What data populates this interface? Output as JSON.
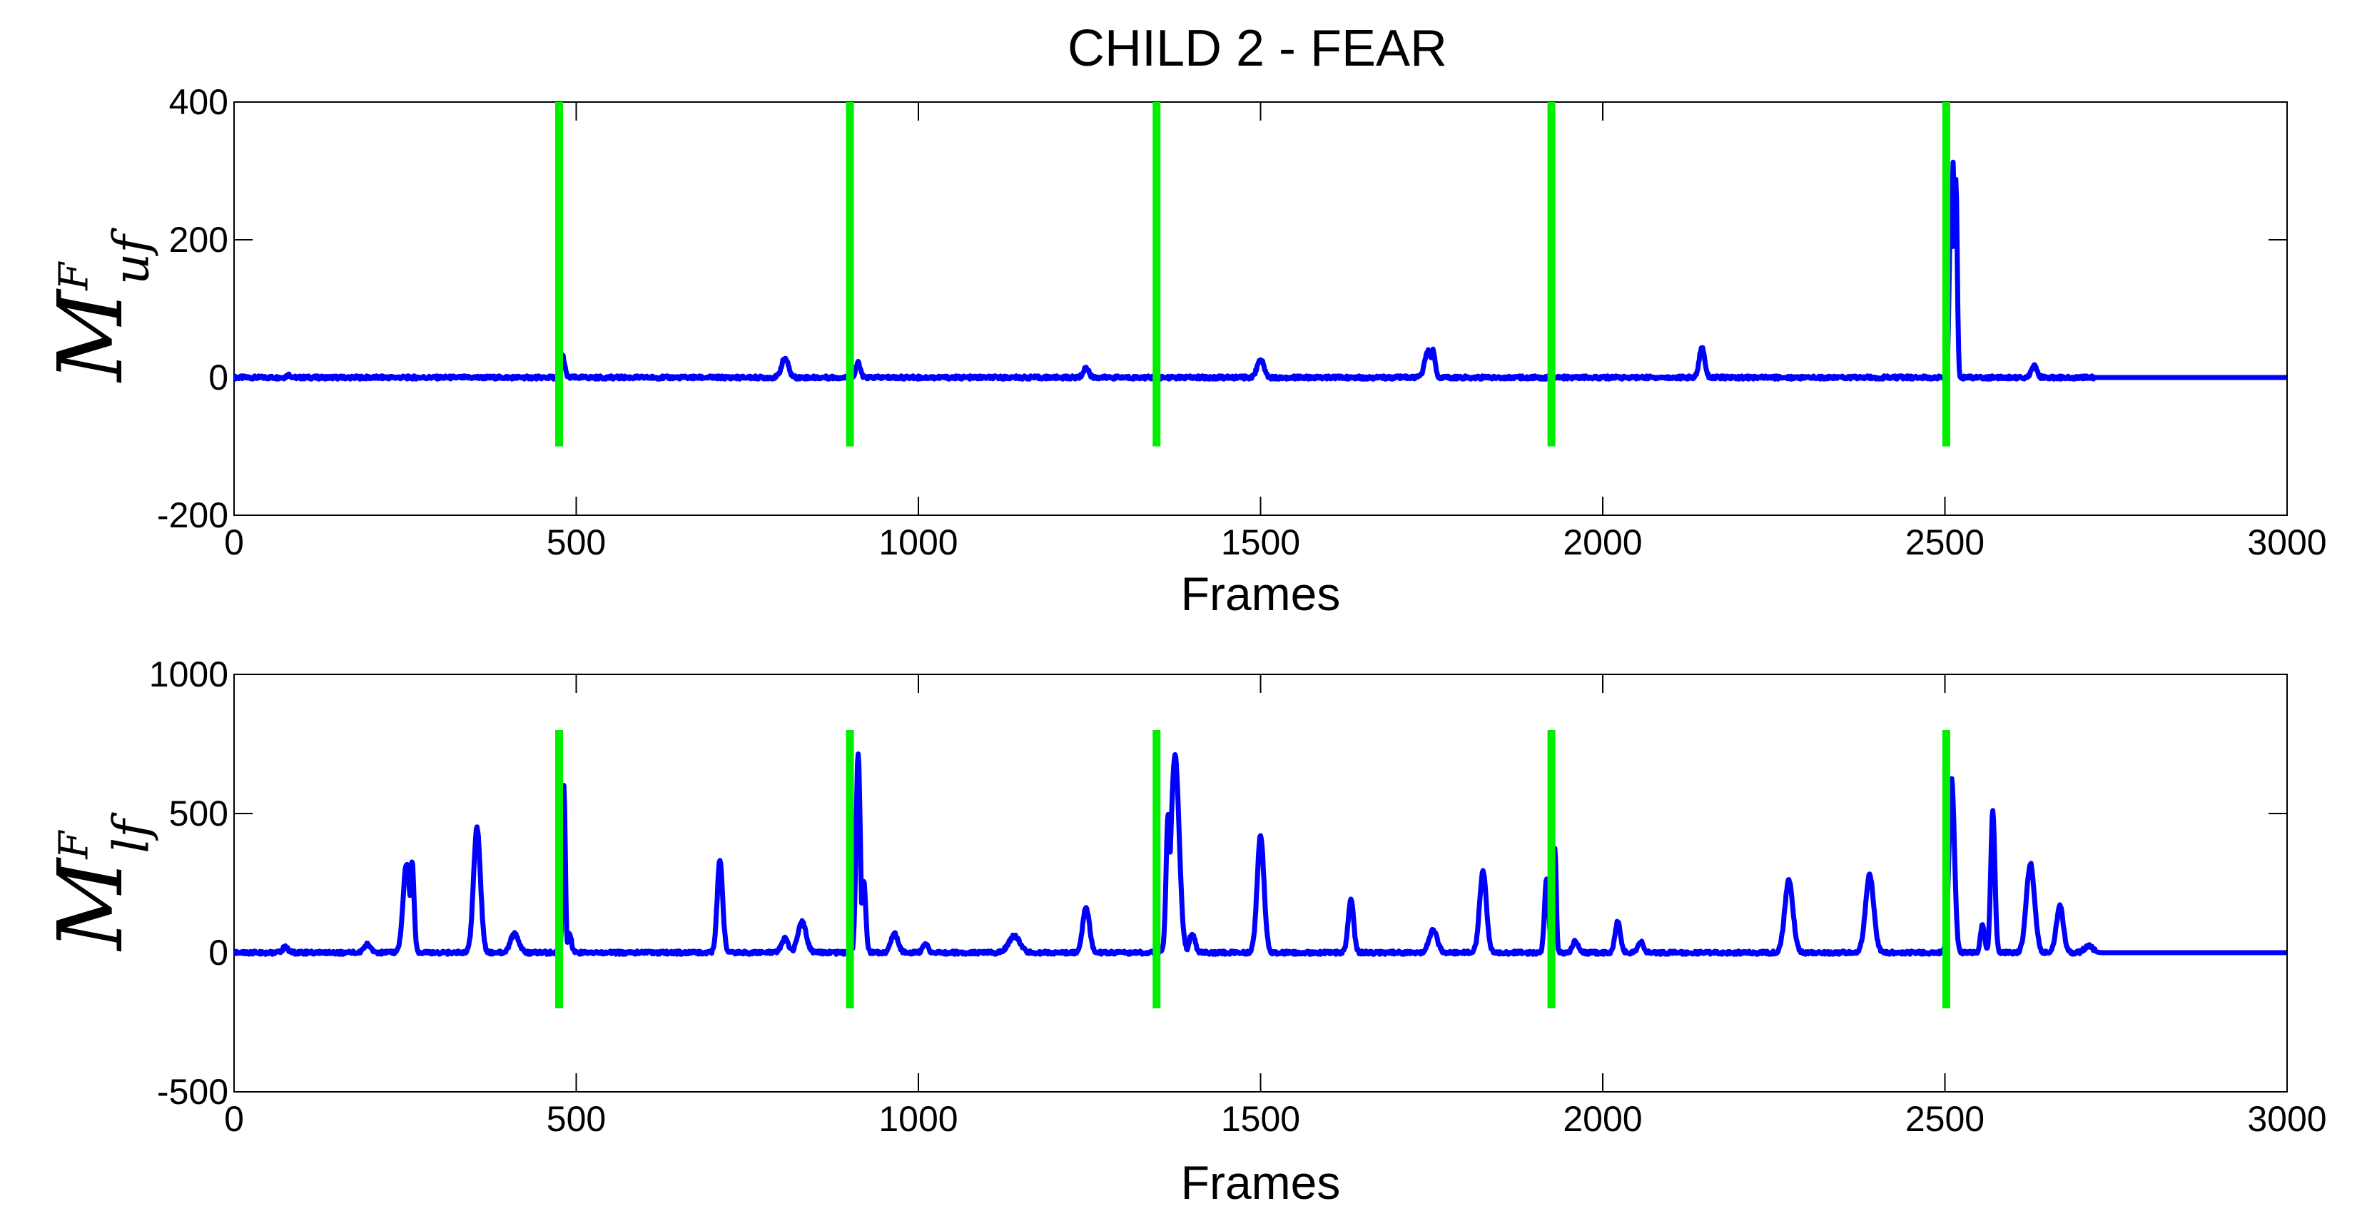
{
  "figure_title": "CHILD 2 - FEAR",
  "colors": {
    "signal": "#0000ff",
    "markers": "#00ee00",
    "axes": "#000000"
  },
  "chart_data": [
    {
      "type": "line",
      "title": "CHILD 2 - FEAR",
      "xlabel": "Frames",
      "ylabel": {
        "base": "M",
        "sup": "F",
        "sub": "uf"
      },
      "xlim": [
        0,
        3000
      ],
      "ylim": [
        -200,
        400
      ],
      "xticks": [
        0,
        500,
        1000,
        1500,
        2000,
        2500,
        3000
      ],
      "yticks": [
        -200,
        0,
        200,
        400
      ],
      "grid": false,
      "vertical_markers": {
        "x": [
          475,
          900,
          1348,
          1925,
          2502
        ],
        "y_range": [
          -100,
          400
        ]
      },
      "series": [
        {
          "peaks": [
            [
              80,
              4,
              3
            ],
            [
              480,
              32,
              3
            ],
            [
              805,
              28,
              5
            ],
            [
              912,
              22,
              3
            ],
            [
              1245,
              14,
              4
            ],
            [
              1500,
              26,
              5
            ],
            [
              1745,
              38,
              5
            ],
            [
              1752,
              40,
              3
            ],
            [
              2145,
              44,
              4
            ],
            [
              2508,
              220,
              2
            ],
            [
              2512,
              312,
              2
            ],
            [
              2516,
              290,
              2
            ],
            [
              2630,
              18,
              4
            ]
          ]
        }
      ]
    },
    {
      "type": "line",
      "xlabel": "Frames",
      "ylabel": {
        "base": "M",
        "sup": "F",
        "sub": "lf"
      },
      "xlim": [
        0,
        3000
      ],
      "ylim": [
        -500,
        1000
      ],
      "xticks": [
        0,
        500,
        1000,
        1500,
        2000,
        2500,
        3000
      ],
      "yticks": [
        -500,
        0,
        500,
        1000
      ],
      "grid": false,
      "vertical_markers": {
        "x": [
          475,
          900,
          1348,
          1925,
          2502
        ],
        "y_range": [
          -200,
          800
        ]
      },
      "series": [
        {
          "peaks": [
            [
              75,
              20,
              4
            ],
            [
              195,
              30,
              5
            ],
            [
              252,
              320,
              5
            ],
            [
              260,
              330,
              3
            ],
            [
              355,
              450,
              5
            ],
            [
              410,
              70,
              6
            ],
            [
              482,
              600,
              2
            ],
            [
              490,
              70,
              3
            ],
            [
              710,
              330,
              4
            ],
            [
              805,
              50,
              5
            ],
            [
              830,
              110,
              6
            ],
            [
              912,
              720,
              3
            ],
            [
              920,
              260,
              3
            ],
            [
              965,
              70,
              5
            ],
            [
              1010,
              30,
              4
            ],
            [
              1140,
              60,
              8
            ],
            [
              1245,
              160,
              5
            ],
            [
              1365,
              500,
              3
            ],
            [
              1375,
              710,
              6
            ],
            [
              1400,
              70,
              4
            ],
            [
              1500,
              420,
              5
            ],
            [
              1632,
              190,
              4
            ],
            [
              1752,
              80,
              6
            ],
            [
              1825,
              290,
              5
            ],
            [
              1918,
              270,
              3
            ],
            [
              1930,
              380,
              2
            ],
            [
              1960,
              40,
              4
            ],
            [
              2022,
              110,
              4
            ],
            [
              2055,
              40,
              4
            ],
            [
              2272,
              260,
              6
            ],
            [
              2390,
              280,
              6
            ],
            [
              2510,
              620,
              4
            ],
            [
              2555,
              100,
              3
            ],
            [
              2570,
              510,
              3
            ],
            [
              2625,
              320,
              6
            ],
            [
              2668,
              170,
              5
            ],
            [
              2710,
              25,
              6
            ]
          ]
        }
      ]
    }
  ]
}
